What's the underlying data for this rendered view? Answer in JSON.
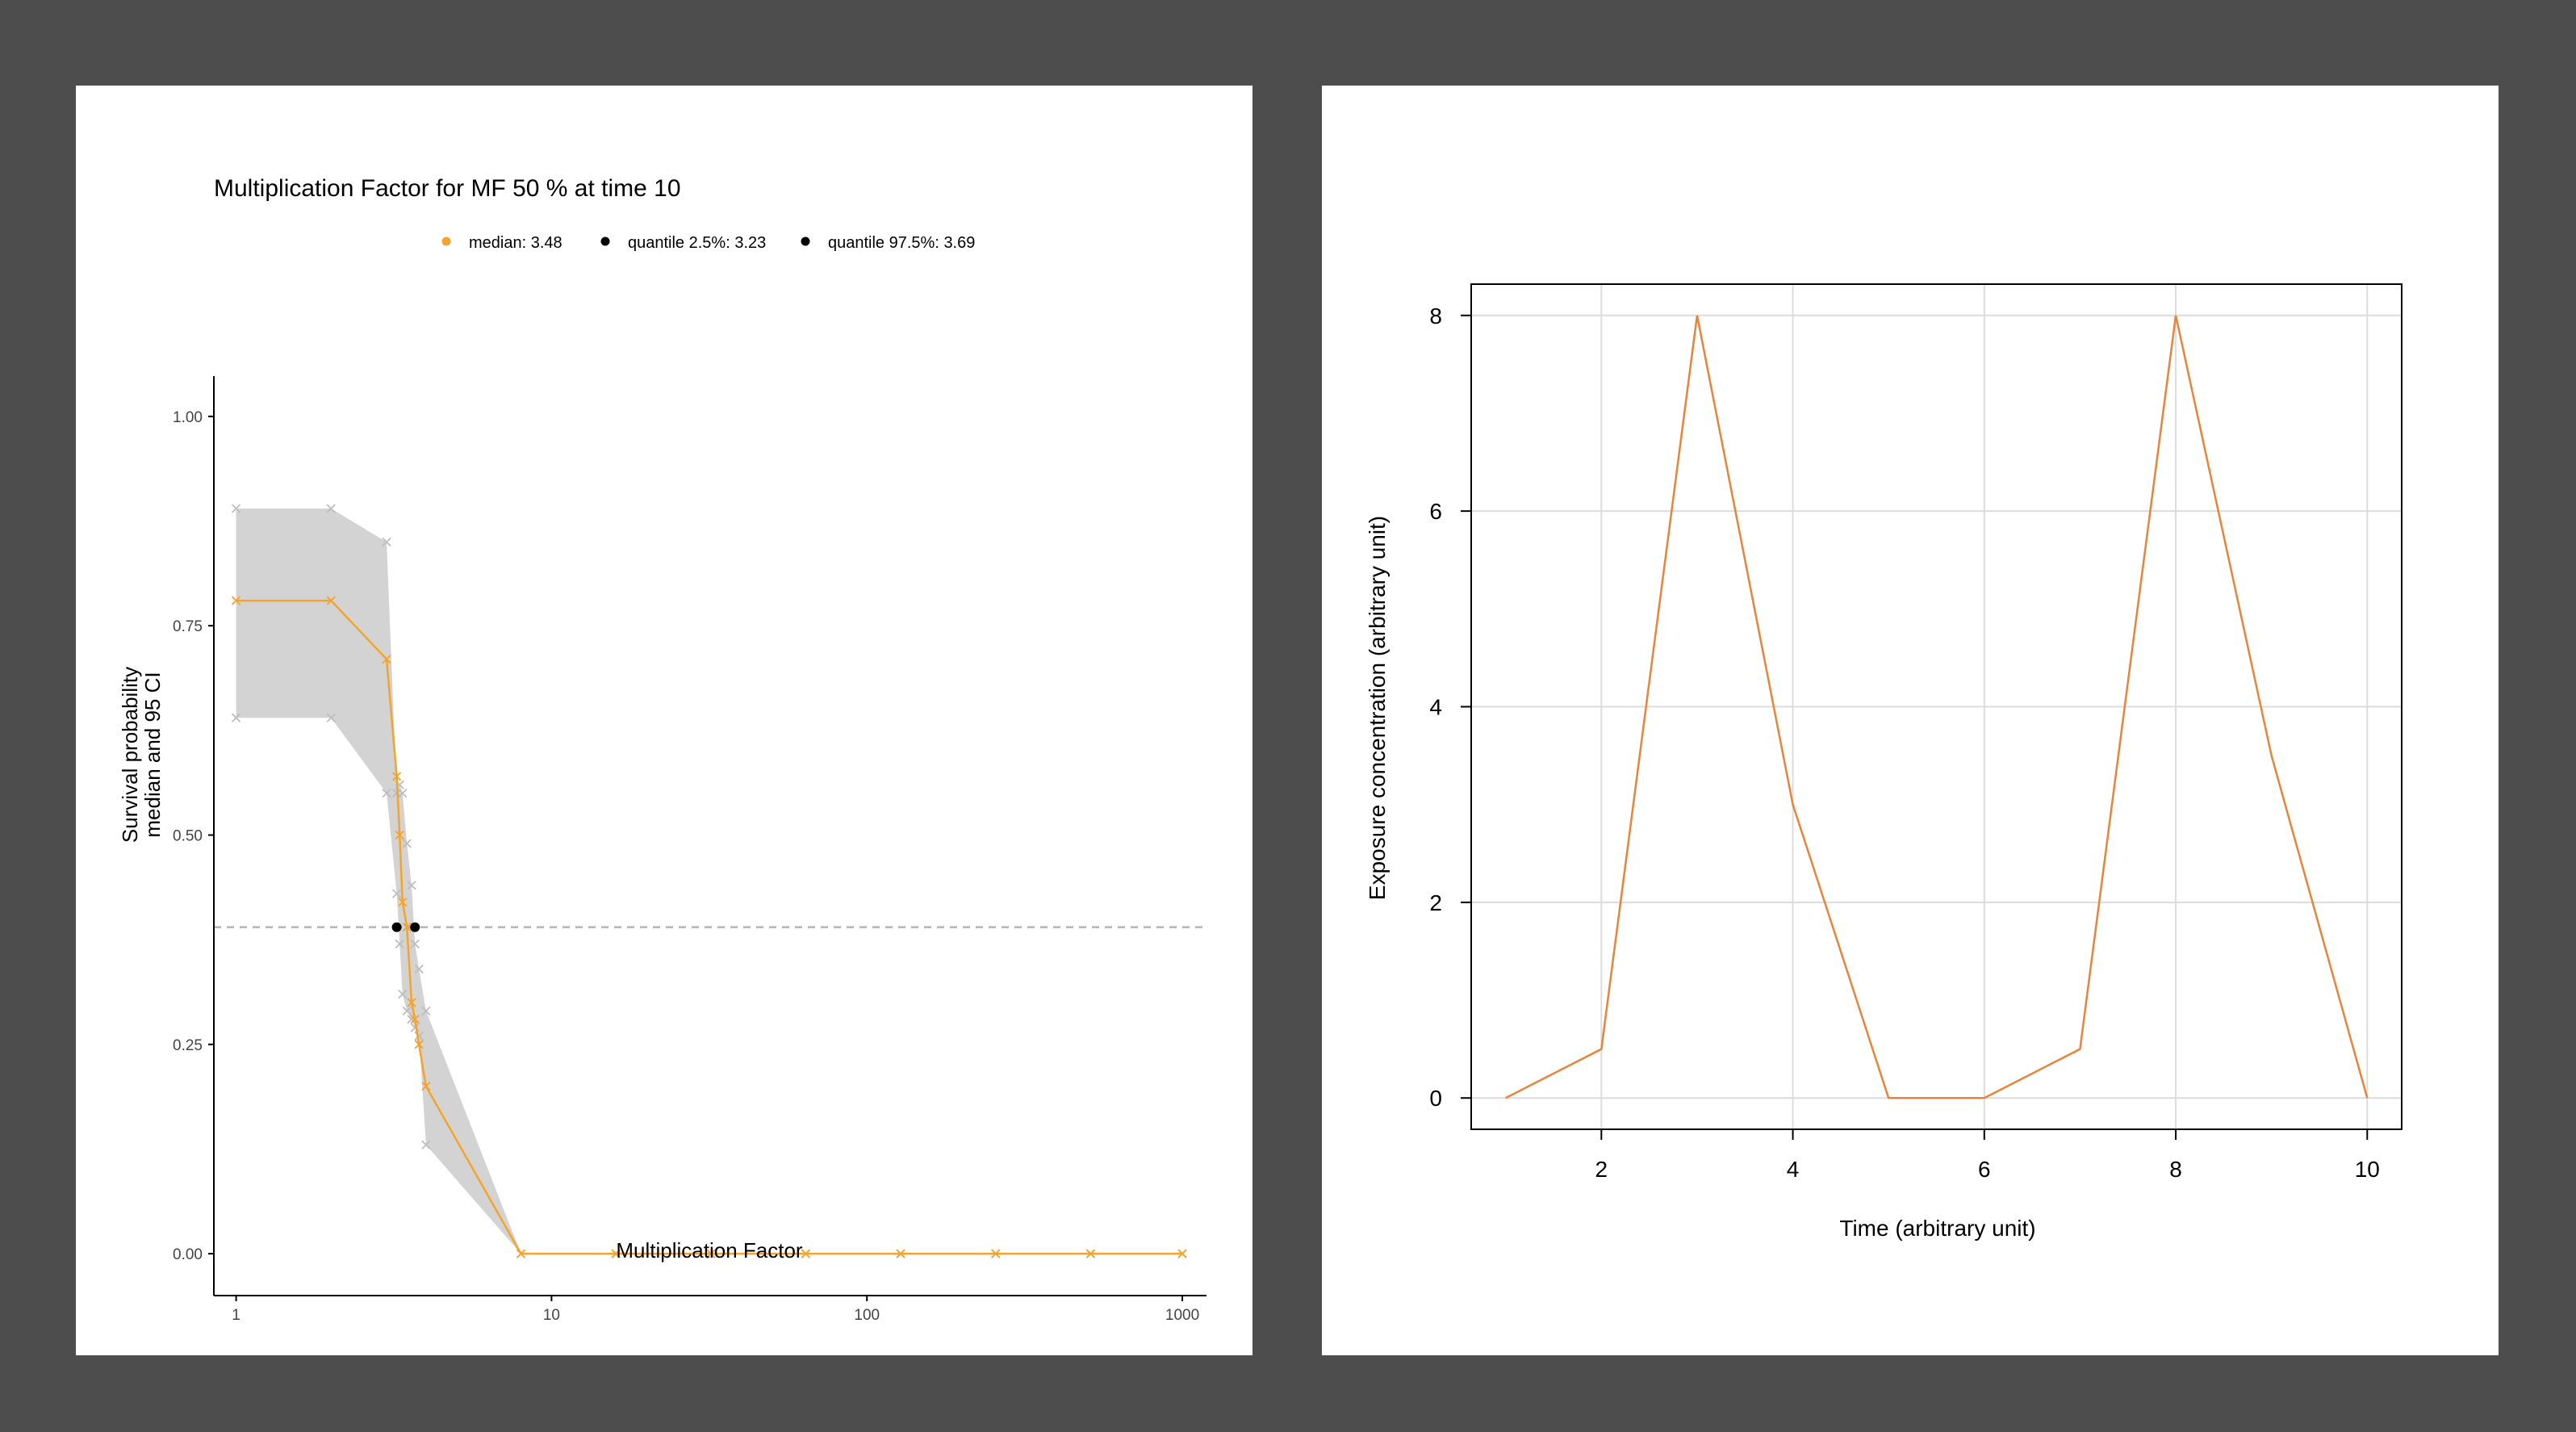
{
  "colors": {
    "background": "#4d4d4d",
    "panel": "#ffffff",
    "median": "#f5a32a",
    "quantile": "#000000",
    "ribbon": "#d3d3d3",
    "cross": "#bdbdbd",
    "reference_line": "#b3b3b3",
    "exposure_line": "#e8843a",
    "grid": "#dcdcdc"
  },
  "chart_data": [
    {
      "type": "line",
      "title": "Multiplication Factor for MF 50 % at time 10",
      "xlabel": "Multiplication Factor",
      "ylabel": [
        "Survival probability",
        "median and 95 CI"
      ],
      "xscale": "log10",
      "xlim": [
        0.85,
        1200
      ],
      "ylim": [
        -0.05,
        1.05
      ],
      "xticks": [
        1,
        10,
        100,
        1000
      ],
      "xtick_labels": [
        "1",
        "10",
        "100",
        "1000"
      ],
      "yticks": [
        0,
        0.25,
        0.5,
        0.75,
        1
      ],
      "ytick_labels": [
        "0.00",
        "0.25",
        "0.50",
        "0.75",
        "1.00"
      ],
      "legend": {
        "position": "top",
        "items": [
          {
            "label": "median:  3.48",
            "color": "#f5a32a"
          },
          {
            "label": "quantile 2.5%:  3.23",
            "color": "#000000"
          },
          {
            "label": "quantile 97.5%:  3.69",
            "color": "#000000"
          }
        ]
      },
      "reference_line_y": 0.39,
      "points_x": [
        1,
        2,
        3,
        3.23,
        3.3,
        3.37,
        3.48,
        3.6,
        3.69,
        3.8,
        4,
        8,
        16,
        32,
        64,
        128,
        256,
        512,
        1000
      ],
      "median": [
        0.78,
        0.78,
        0.71,
        0.57,
        0.5,
        0.42,
        0.39,
        0.3,
        0.28,
        0.25,
        0.2,
        0.0,
        0.0,
        0.0,
        0.0,
        0.0,
        0.0,
        0.0,
        0.0
      ],
      "upper": [
        0.89,
        0.89,
        0.85,
        0.55,
        0.56,
        0.55,
        0.49,
        0.44,
        0.37,
        0.34,
        0.29,
        0.0,
        0.0,
        0.0,
        0.0,
        0.0,
        0.0,
        0.0,
        0.0
      ],
      "lower": [
        0.64,
        0.64,
        0.55,
        0.43,
        0.37,
        0.31,
        0.29,
        0.28,
        0.27,
        0.26,
        0.13,
        0.0,
        0.0,
        0.0,
        0.0,
        0.0,
        0.0,
        0.0,
        0.0
      ],
      "quantile_points": [
        {
          "x": 3.23,
          "y": 0.39
        },
        {
          "x": 3.69,
          "y": 0.39
        }
      ]
    },
    {
      "type": "line",
      "title": "",
      "xlabel": "Time (arbitrary unit)",
      "ylabel": "Exposure concentration (arbitrary unit)",
      "xlim": [
        0.64,
        10.36
      ],
      "ylim": [
        -0.32,
        8.32
      ],
      "grid": true,
      "xticks": [
        2,
        4,
        6,
        8,
        10
      ],
      "xtick_labels": [
        "2",
        "4",
        "6",
        "8",
        "10"
      ],
      "yticks": [
        0,
        2,
        4,
        6,
        8
      ],
      "ytick_labels": [
        "0",
        "2",
        "4",
        "6",
        "8"
      ],
      "x": [
        1,
        2,
        3,
        4,
        5,
        6,
        7,
        8,
        9,
        10
      ],
      "y": [
        0,
        0.5,
        8,
        3,
        0,
        0,
        0.5,
        8,
        3.5,
        0
      ]
    }
  ]
}
